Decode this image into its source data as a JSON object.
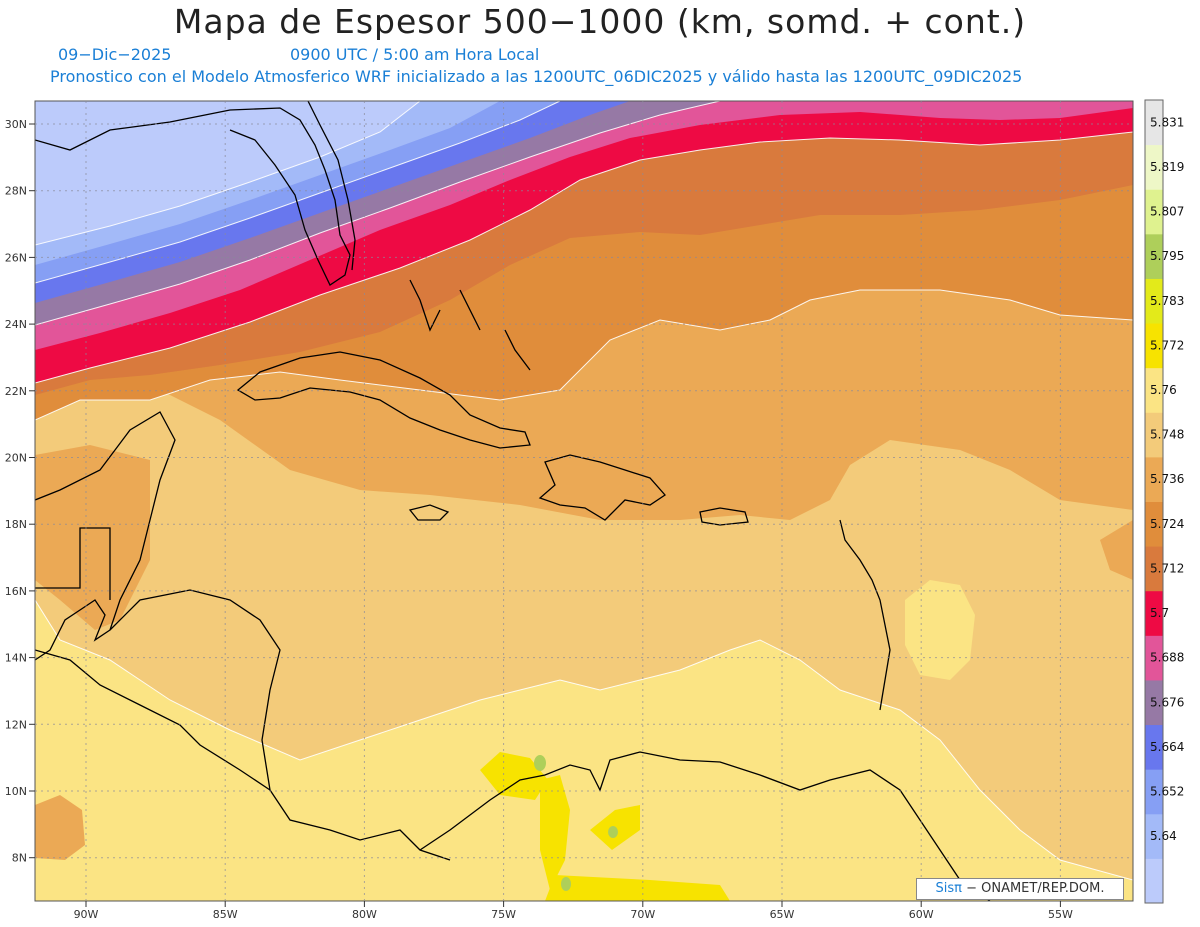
{
  "title": "Mapa de Espesor 500−1000 (km, somd. + cont.)",
  "date": "09−Dic−2025",
  "time": "0900 UTC / 5:00 am Hora Local",
  "description": "Pronostico con el Modelo Atmosferico WRF inicializado a las 1200UTC_06DIC2025 y válido hasta las  1200UTC_09DIC2025",
  "credit": {
    "logo": "Sisπ",
    "text": "− ONAMET/REP.DOM."
  },
  "lat_labels": [
    "30N",
    "28N",
    "26N",
    "24N",
    "22N",
    "20N",
    "18N",
    "16N",
    "14N",
    "12N",
    "10N",
    "8N"
  ],
  "lon_labels": [
    "90W",
    "85W",
    "80W",
    "75W",
    "70W",
    "65W",
    "60W",
    "55W"
  ],
  "colorbar": {
    "labels": [
      "5.64",
      "5.652",
      "5.664",
      "5.676",
      "5.688",
      "5.7",
      "5.712",
      "5.724",
      "5.736",
      "5.748",
      "5.76",
      "5.772",
      "5.783",
      "5.795",
      "5.807",
      "5.819",
      "5.831"
    ],
    "colors": [
      "#bccbfb",
      "#a3baf8",
      "#869ff4",
      "#6877ee",
      "#9679a5",
      "#e25599",
      "#ee0a44",
      "#d97a3d",
      "#e08d3b",
      "#eba955",
      "#f3cb7a",
      "#fbe484",
      "#f7e300",
      "#e3ea1a",
      "#aecf5a",
      "#dff28f",
      "#eef7c7",
      "#e6e6e6"
    ]
  },
  "colors": {
    "band_light_blue": "#bccbfb",
    "band_mid_blue": "#869ff4",
    "band_purple": "#9679a5",
    "band_pink": "#e25599",
    "band_red": "#ee0a44",
    "band_dark_orange": "#d97a3d",
    "band_orange": "#e08d3b",
    "band_tan": "#eba955",
    "band_light_tan": "#f3cb7a",
    "band_yellow": "#fbe484",
    "band_bright_yellow": "#f7e300",
    "title_blue": "#1a7fd6"
  }
}
